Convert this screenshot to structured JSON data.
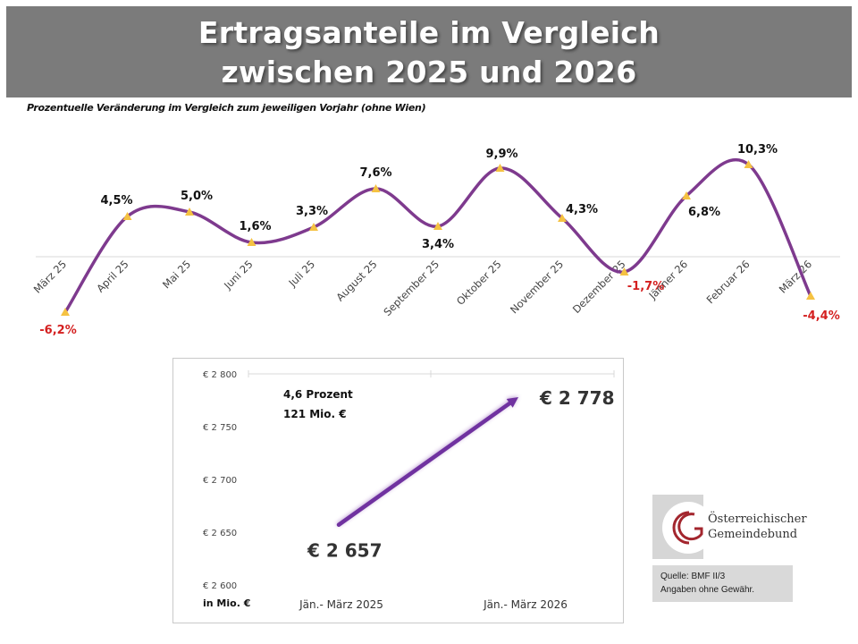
{
  "header": {
    "title_line1": "Ertragsanteile im Vergleich",
    "title_line2": "zwischen 2025 und 2026"
  },
  "chart_data": [
    {
      "type": "line",
      "title": "Prozentuelle Veränderung im Vergleich zum jeweiligen Vorjahr (ohne Wien)",
      "categories": [
        "März 25",
        "April 25",
        "Mai 25",
        "Juni 25",
        "Juli 25",
        "August 25",
        "September 25",
        "Oktober 25",
        "November 25",
        "Dezember 25",
        "Jänner 26",
        "Februar 26",
        "März 26"
      ],
      "values": [
        -6.2,
        4.5,
        5.0,
        1.6,
        3.3,
        7.6,
        3.4,
        9.9,
        4.3,
        -1.7,
        6.8,
        10.3,
        -4.4
      ],
      "labels": [
        "-6,2%",
        "4,5%",
        "5,0%",
        "1,6%",
        "3,3%",
        "7,6%",
        "3,4%",
        "9,9%",
        "4,3%",
        "-1,7%",
        "6,8%",
        "10,3%",
        "-4,4%"
      ],
      "unit": "%",
      "smoothed": true,
      "line_color": "#7e3a8e",
      "marker_color": "#f5c242",
      "positive_label_color": "#111111",
      "negative_label_color": "#d42020",
      "grid": false
    },
    {
      "type": "line",
      "title": "",
      "categories": [
        "Jän.- März 2025",
        "Jän.- März 2026"
      ],
      "values": [
        2657,
        2778
      ],
      "value_labels": [
        "€ 2 657",
        "€ 2 778"
      ],
      "yticks": [
        "€ 2 800",
        "€ 2 750",
        "€ 2 700",
        "€ 2 650",
        "€ 2 600"
      ],
      "ytick_values": [
        2800,
        2750,
        2700,
        2650,
        2600
      ],
      "ylim": [
        2600,
        2800
      ],
      "ylabel": "in Mio. €",
      "annotation_line1": "4,6 Prozent",
      "annotation_line2": "121 Mio. €",
      "arrow_color": "#7030a0"
    }
  ],
  "logo": {
    "name_line1": "Österreichischer",
    "name_line2": "Gemeindebund",
    "icon": "gemeindebund-logo-icon",
    "color": "#a3262e"
  },
  "source": {
    "line1": "Quelle: BMF II/3",
    "line2": "Angaben ohne Gewähr."
  }
}
